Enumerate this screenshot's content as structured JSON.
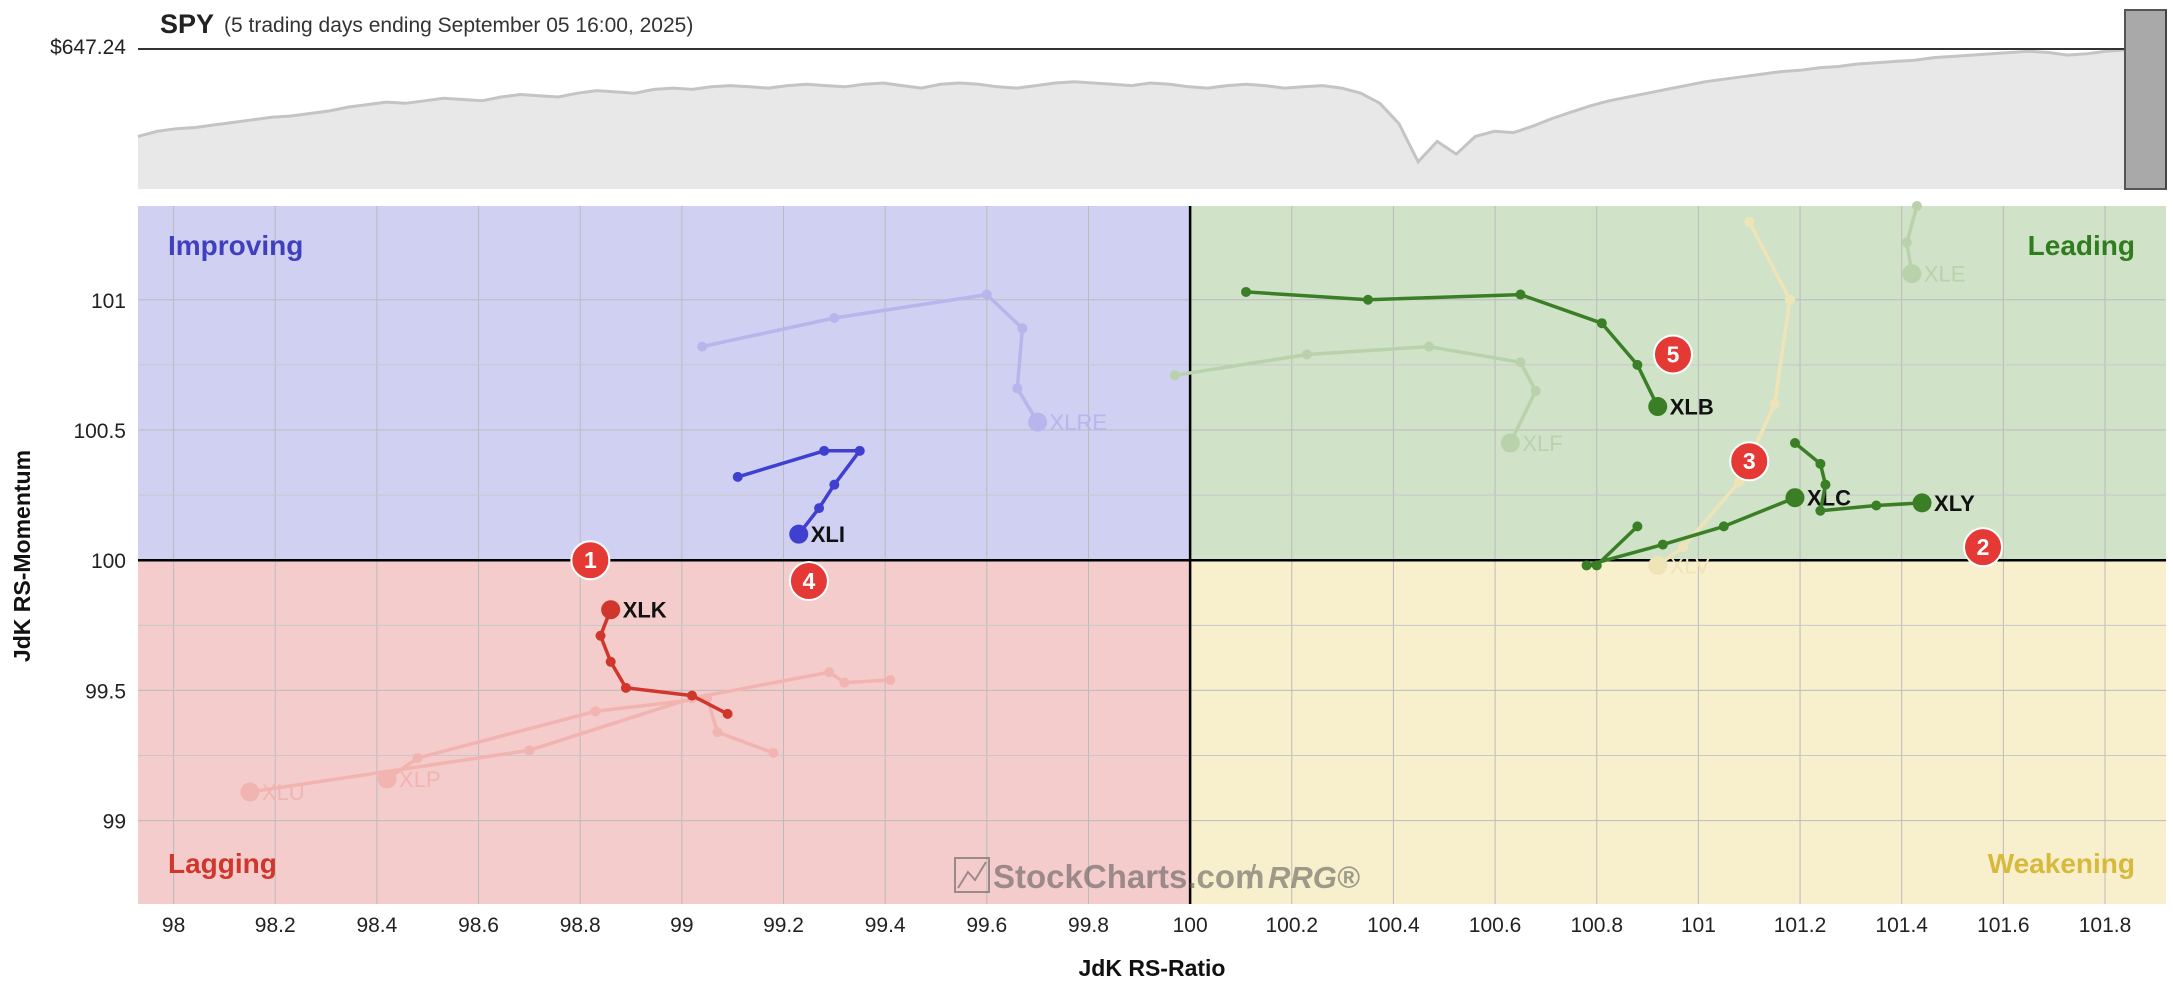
{
  "header": {
    "symbol": "SPY",
    "subtitle": "(5 trading days ending September 05 16:00, 2025)",
    "price": "$647.24"
  },
  "quadrants": {
    "improving": {
      "label": "Improving",
      "color": "#3f3fbf",
      "fill": "#d0d0f3"
    },
    "leading": {
      "label": "Leading",
      "color": "#2f7d1f",
      "fill": "#d0e2c8"
    },
    "lagging": {
      "label": "Lagging",
      "color": "#d0362c",
      "fill": "#f4cccb"
    },
    "weakening": {
      "label": "Weakening",
      "color": "#d8b93c",
      "fill": "#f8efcd"
    }
  },
  "watermark": {
    "brand": "StockCharts.com",
    "sep": "/",
    "product": "RRG®"
  },
  "chart_data": [
    {
      "type": "area",
      "title": "SPY",
      "current_value_label": "$647.24",
      "trend": [
        0.32,
        0.36,
        0.38,
        0.39,
        0.41,
        0.43,
        0.45,
        0.47,
        0.48,
        0.5,
        0.52,
        0.55,
        0.57,
        0.59,
        0.58,
        0.6,
        0.62,
        0.61,
        0.6,
        0.63,
        0.65,
        0.64,
        0.63,
        0.66,
        0.68,
        0.67,
        0.66,
        0.69,
        0.7,
        0.69,
        0.71,
        0.72,
        0.71,
        0.7,
        0.72,
        0.73,
        0.72,
        0.71,
        0.73,
        0.74,
        0.72,
        0.7,
        0.73,
        0.74,
        0.73,
        0.71,
        0.7,
        0.72,
        0.74,
        0.75,
        0.74,
        0.73,
        0.72,
        0.74,
        0.73,
        0.71,
        0.7,
        0.72,
        0.73,
        0.72,
        0.7,
        0.71,
        0.72,
        0.7,
        0.66,
        0.58,
        0.42,
        0.12,
        0.28,
        0.18,
        0.32,
        0.36,
        0.35,
        0.4,
        0.46,
        0.51,
        0.56,
        0.6,
        0.63,
        0.66,
        0.69,
        0.72,
        0.75,
        0.77,
        0.79,
        0.81,
        0.83,
        0.84,
        0.86,
        0.87,
        0.89,
        0.9,
        0.91,
        0.92,
        0.94,
        0.95,
        0.96,
        0.97,
        0.98,
        0.99,
        0.98,
        0.96,
        0.97,
        0.99,
        1.0
      ]
    },
    {
      "type": "scatter",
      "title": "",
      "xlabel": "JdK RS-Ratio",
      "ylabel": "JdK RS-Momentum",
      "xlim": [
        97.93,
        101.92
      ],
      "ylim": [
        98.68,
        101.36
      ],
      "xticks": [
        98,
        98.2,
        98.4,
        98.6,
        98.8,
        99,
        99.2,
        99.4,
        99.6,
        99.8,
        100,
        100.2,
        100.4,
        100.6,
        100.8,
        101,
        101.2,
        101.4,
        101.6,
        101.8
      ],
      "xtick_labels": [
        "98",
        "98.2",
        "98.4",
        "98.6",
        "98.8",
        "99",
        "99.2",
        "99.4",
        "99.6",
        "99.8",
        "100",
        "100.2",
        "100.4",
        "100.6",
        "100.8",
        "101",
        "101.2",
        "101.4",
        "101.6",
        "101.8"
      ],
      "yticks": [
        99,
        99.5,
        100,
        100.5,
        101
      ],
      "ytick_labels": [
        "99",
        "99.5",
        "100",
        "100.5",
        "101"
      ],
      "grid": true,
      "series": [
        {
          "name": "XLK",
          "color": "#d0362c",
          "faded": false,
          "points": [
            [
              99.09,
              99.41
            ],
            [
              99.02,
              99.48
            ],
            [
              98.89,
              99.51
            ],
            [
              98.86,
              99.61
            ],
            [
              98.84,
              99.71
            ],
            [
              98.86,
              99.81
            ]
          ]
        },
        {
          "name": "XLI",
          "color": "#4040d0",
          "faded": false,
          "points": [
            [
              99.11,
              100.32
            ],
            [
              99.28,
              100.42
            ],
            [
              99.35,
              100.42
            ],
            [
              99.3,
              100.29
            ],
            [
              99.27,
              100.2
            ],
            [
              99.23,
              100.1
            ]
          ]
        },
        {
          "name": "XLB",
          "color": "#3a7f26",
          "faded": false,
          "points": [
            [
              100.11,
              101.03
            ],
            [
              100.35,
              101.0
            ],
            [
              100.65,
              101.02
            ],
            [
              100.81,
              100.91
            ],
            [
              100.88,
              100.75
            ],
            [
              100.92,
              100.59
            ]
          ]
        },
        {
          "name": "XLC",
          "color": "#3a7f26",
          "faded": false,
          "points": [
            [
              100.88,
              100.13
            ],
            [
              100.8,
              99.98
            ],
            [
              100.78,
              99.98
            ],
            [
              100.93,
              100.06
            ],
            [
              101.05,
              100.13
            ],
            [
              101.19,
              100.24
            ]
          ]
        },
        {
          "name": "XLY",
          "color": "#3a7f26",
          "faded": false,
          "points": [
            [
              101.19,
              100.45
            ],
            [
              101.24,
              100.37
            ],
            [
              101.25,
              100.29
            ],
            [
              101.24,
              100.19
            ],
            [
              101.35,
              100.21
            ],
            [
              101.44,
              100.22
            ]
          ]
        },
        {
          "name": "XLRE",
          "color": "#b6b6ec",
          "faded": true,
          "points": [
            [
              99.04,
              100.82
            ],
            [
              99.3,
              100.93
            ],
            [
              99.6,
              101.02
            ],
            [
              99.67,
              100.89
            ],
            [
              99.66,
              100.66
            ],
            [
              99.7,
              100.53
            ]
          ]
        },
        {
          "name": "XLF",
          "color": "#b9d2ab",
          "faded": true,
          "points": [
            [
              99.97,
              100.71
            ],
            [
              100.23,
              100.79
            ],
            [
              100.47,
              100.82
            ],
            [
              100.65,
              100.76
            ],
            [
              100.68,
              100.65
            ],
            [
              100.63,
              100.45
            ]
          ]
        },
        {
          "name": "XLU",
          "color": "#f2b4b0",
          "faded": true,
          "points": [
            [
              99.41,
              99.54
            ],
            [
              99.32,
              99.53
            ],
            [
              99.29,
              99.57
            ],
            [
              99.02,
              99.47
            ],
            [
              98.7,
              99.27
            ],
            [
              98.15,
              99.11
            ]
          ]
        },
        {
          "name": "XLP",
          "color": "#f2b4b0",
          "faded": true,
          "points": [
            [
              99.18,
              99.26
            ],
            [
              99.07,
              99.34
            ],
            [
              99.05,
              99.47
            ],
            [
              98.83,
              99.42
            ],
            [
              98.48,
              99.24
            ],
            [
              98.42,
              99.16
            ]
          ]
        },
        {
          "name": "XLE",
          "color": "#b9d2ab",
          "faded": true,
          "points": [
            [
              101.43,
              101.36
            ],
            [
              101.41,
              101.22
            ],
            [
              101.42,
              101.1
            ]
          ]
        },
        {
          "name": "XLV",
          "color": "#efe4b7",
          "faded": true,
          "points": [
            [
              101.1,
              101.3
            ],
            [
              101.18,
              101.0
            ],
            [
              101.15,
              100.6
            ],
            [
              101.08,
              100.3
            ],
            [
              100.97,
              100.05
            ],
            [
              100.92,
              99.98
            ]
          ]
        }
      ],
      "annotations": [
        {
          "label": "1",
          "x": 98.82,
          "y": 100.0
        },
        {
          "label": "2",
          "x": 101.56,
          "y": 100.05
        },
        {
          "label": "3",
          "x": 101.1,
          "y": 100.38
        },
        {
          "label": "4",
          "x": 99.25,
          "y": 99.92
        },
        {
          "label": "5",
          "x": 100.95,
          "y": 100.79
        }
      ]
    }
  ]
}
